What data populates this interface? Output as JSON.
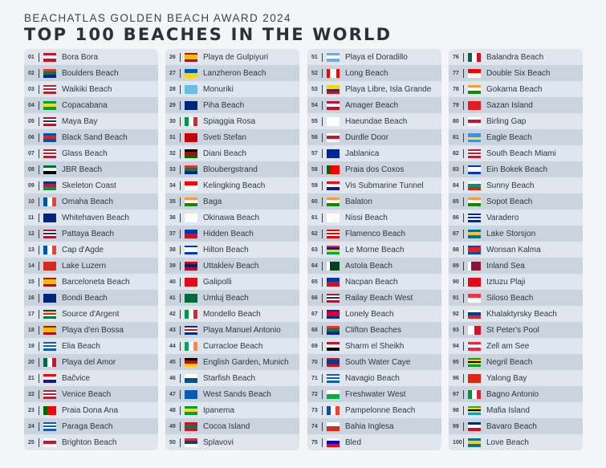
{
  "header": {
    "subtitle": "BEACHATLAS GOLDEN BEACH AWARD 2024",
    "title": "TOP 100 BEACHES IN THE WORLD"
  },
  "flags": {
    "pf": {
      "d": "h",
      "c": [
        "#ce1126",
        "#fff",
        "#ce1126"
      ]
    },
    "za": {
      "d": "h",
      "c": [
        "#de3831",
        "#007a4d",
        "#002395"
      ]
    },
    "us": {
      "d": "h",
      "c": [
        "#b22234",
        "#fff",
        "#b22234",
        "#fff",
        "#b22234"
      ]
    },
    "br": {
      "d": "h",
      "c": [
        "#009c3b",
        "#ffdf00",
        "#009c3b"
      ]
    },
    "mx": {
      "d": "v",
      "c": [
        "#006847",
        "#fff",
        "#ce1126"
      ]
    },
    "is": {
      "d": "h",
      "c": [
        "#02529c",
        "#dc1e35",
        "#02529c"
      ]
    },
    "ae": {
      "d": "h",
      "c": [
        "#00732f",
        "#fff",
        "#000"
      ]
    },
    "na": {
      "d": "h",
      "c": [
        "#003580",
        "#d21034",
        "#009543"
      ]
    },
    "fr": {
      "d": "v",
      "c": [
        "#0055a4",
        "#fff",
        "#ef4135"
      ]
    },
    "au": {
      "d": "h",
      "c": [
        "#00247d",
        "#00247d"
      ]
    },
    "th": {
      "d": "h",
      "c": [
        "#a51931",
        "#fff",
        "#2d2a4a",
        "#fff",
        "#a51931"
      ]
    },
    "ch": {
      "d": "h",
      "c": [
        "#d52b1e"
      ]
    },
    "es": {
      "d": "h",
      "c": [
        "#aa151b",
        "#f1bf00",
        "#f1bf00",
        "#aa151b"
      ]
    },
    "sc": {
      "d": "h",
      "c": [
        "#003f87",
        "#fcd856",
        "#d62828",
        "#fff",
        "#007a3d"
      ]
    },
    "gr": {
      "d": "h",
      "c": [
        "#0d5eaf",
        "#fff",
        "#0d5eaf",
        "#fff",
        "#0d5eaf"
      ]
    },
    "hr": {
      "d": "h",
      "c": [
        "#ff0000",
        "#fff",
        "#171796"
      ]
    },
    "pt": {
      "d": "v",
      "c": [
        "#006600",
        "#ff0000",
        "#ff0000"
      ]
    },
    "en": {
      "d": "h",
      "c": [
        "#fff",
        "#ce1124",
        "#fff"
      ]
    },
    "ua": {
      "d": "h",
      "c": [
        "#0057b7",
        "#ffd700"
      ]
    },
    "fj": {
      "d": "h",
      "c": [
        "#68bfe5"
      ]
    },
    "nz": {
      "d": "h",
      "c": [
        "#00247d"
      ]
    },
    "it": {
      "d": "v",
      "c": [
        "#009246",
        "#fff",
        "#ce2b37"
      ]
    },
    "me": {
      "d": "h",
      "c": [
        "#c40308"
      ]
    },
    "ke": {
      "d": "h",
      "c": [
        "#000",
        "#bb0000",
        "#006600"
      ]
    },
    "in": {
      "d": "h",
      "c": [
        "#ff9933",
        "#fff",
        "#138808"
      ]
    },
    "jp": {
      "d": "h",
      "c": [
        "#fff"
      ]
    },
    "ph": {
      "d": "h",
      "c": [
        "#0038a8",
        "#ce1126"
      ]
    },
    "il": {
      "d": "h",
      "c": [
        "#0038b8",
        "#fff",
        "#fff",
        "#0038b8"
      ]
    },
    "no": {
      "d": "h",
      "c": [
        "#ba0c2f",
        "#00205b",
        "#ba0c2f"
      ]
    },
    "tr": {
      "d": "h",
      "c": [
        "#e30a17"
      ]
    },
    "sa": {
      "d": "h",
      "c": [
        "#006c35"
      ]
    },
    "cr": {
      "d": "h",
      "c": [
        "#002b7f",
        "#fff",
        "#ce1126",
        "#fff",
        "#002b7f"
      ]
    },
    "ie": {
      "d": "v",
      "c": [
        "#169b62",
        "#fff",
        "#ff883e"
      ]
    },
    "de": {
      "d": "h",
      "c": [
        "#000",
        "#dd0000",
        "#ffce00"
      ]
    },
    "pa": {
      "d": "h",
      "c": [
        "#fff",
        "#005293"
      ]
    },
    "scot": {
      "d": "h",
      "c": [
        "#005eb8"
      ]
    },
    "mv": {
      "d": "h",
      "c": [
        "#d21034",
        "#007e3a",
        "#d21034"
      ]
    },
    "rs": {
      "d": "h",
      "c": [
        "#c6363c",
        "#0c4076",
        "#fff"
      ]
    },
    "ar": {
      "d": "h",
      "c": [
        "#74acdf",
        "#fff",
        "#74acdf"
      ]
    },
    "ca": {
      "d": "v",
      "c": [
        "#ff0000",
        "#fff",
        "#fff",
        "#ff0000"
      ]
    },
    "co": {
      "d": "h",
      "c": [
        "#fcd116",
        "#fcd116",
        "#003893",
        "#ce1126"
      ]
    },
    "dk": {
      "d": "h",
      "c": [
        "#c8102e",
        "#fff",
        "#c8102e"
      ]
    },
    "kr": {
      "d": "h",
      "c": [
        "#fff"
      ]
    },
    "ba": {
      "d": "h",
      "c": [
        "#002395"
      ]
    },
    "cy": {
      "d": "h",
      "c": [
        "#fff"
      ]
    },
    "pr": {
      "d": "h",
      "c": [
        "#ed0000",
        "#fff",
        "#ed0000",
        "#fff",
        "#ed0000"
      ]
    },
    "mu": {
      "d": "h",
      "c": [
        "#ea2839",
        "#1a206d",
        "#ffd500",
        "#00a551"
      ]
    },
    "pk": {
      "d": "v",
      "c": [
        "#fff",
        "#01411c",
        "#01411c",
        "#01411c"
      ]
    },
    "kh": {
      "d": "h",
      "c": [
        "#032ea1",
        "#e00025",
        "#e00025",
        "#032ea1"
      ]
    },
    "eg": {
      "d": "h",
      "c": [
        "#ce1126",
        "#fff",
        "#000"
      ]
    },
    "bz": {
      "d": "h",
      "c": [
        "#ce1126",
        "#003f87",
        "#003f87",
        "#003f87",
        "#ce1126"
      ]
    },
    "wales": {
      "d": "h",
      "c": [
        "#fff",
        "#00b140"
      ]
    },
    "cl": {
      "d": "h",
      "c": [
        "#fff",
        "#d52b1e"
      ]
    },
    "si": {
      "d": "h",
      "c": [
        "#fff",
        "#0000ff",
        "#ff0000"
      ]
    },
    "id": {
      "d": "h",
      "c": [
        "#ff0000",
        "#fff"
      ]
    },
    "al": {
      "d": "h",
      "c": [
        "#e41e20"
      ]
    },
    "aw": {
      "d": "h",
      "c": [
        "#418fde",
        "#418fde",
        "#f9e814",
        "#418fde"
      ]
    },
    "bg": {
      "d": "h",
      "c": [
        "#fff",
        "#00966e",
        "#d62612"
      ]
    },
    "cu": {
      "d": "h",
      "c": [
        "#002a8f",
        "#fff",
        "#002a8f",
        "#fff",
        "#002a8f"
      ]
    },
    "se": {
      "d": "h",
      "c": [
        "#006aa7",
        "#fecc00",
        "#006aa7"
      ]
    },
    "kp": {
      "d": "h",
      "c": [
        "#024fa2",
        "#ed1c27",
        "#ed1c27",
        "#024fa2"
      ]
    },
    "qa": {
      "d": "v",
      "c": [
        "#fff",
        "#8a1538",
        "#8a1538",
        "#8a1538"
      ]
    },
    "sg": {
      "d": "h",
      "c": [
        "#ef3340",
        "#fff"
      ]
    },
    "ru": {
      "d": "h",
      "c": [
        "#fff",
        "#0039a6",
        "#d52b1e"
      ]
    },
    "mt": {
      "d": "v",
      "c": [
        "#fff",
        "#cf142b"
      ]
    },
    "at": {
      "d": "h",
      "c": [
        "#ed2939",
        "#fff",
        "#ed2939"
      ]
    },
    "jm": {
      "d": "h",
      "c": [
        "#009b3a",
        "#fed100",
        "#000",
        "#fed100",
        "#009b3a"
      ]
    },
    "cn": {
      "d": "h",
      "c": [
        "#de2910"
      ]
    },
    "tz": {
      "d": "h",
      "c": [
        "#1eb53a",
        "#fcd116",
        "#000",
        "#fcd116",
        "#00a3dd"
      ]
    },
    "do": {
      "d": "h",
      "c": [
        "#002d62",
        "#fff",
        "#ce1126"
      ]
    },
    "bs": {
      "d": "h",
      "c": [
        "#00778b",
        "#ffc72c",
        "#00778b"
      ]
    }
  },
  "beaches": [
    {
      "n": "01",
      "name": "Bora Bora",
      "f": "pf"
    },
    {
      "n": "02",
      "name": "Boulders Beach",
      "f": "za"
    },
    {
      "n": "03",
      "name": "Waikiki Beach",
      "f": "us"
    },
    {
      "n": "04",
      "name": "Copacabana",
      "f": "br"
    },
    {
      "n": "05",
      "name": "Maya Bay",
      "f": "th"
    },
    {
      "n": "06",
      "name": "Black Sand Beach",
      "f": "is"
    },
    {
      "n": "07",
      "name": "Glass Beach",
      "f": "us"
    },
    {
      "n": "08",
      "name": "JBR Beach",
      "f": "ae"
    },
    {
      "n": "09",
      "name": "Skeleton Coast",
      "f": "na"
    },
    {
      "n": "10",
      "name": "Omaha Beach",
      "f": "fr"
    },
    {
      "n": "11",
      "name": "Whitehaven Beach",
      "f": "au"
    },
    {
      "n": "12",
      "name": "Pattaya Beach",
      "f": "th"
    },
    {
      "n": "13",
      "name": "Cap d'Agde",
      "f": "fr"
    },
    {
      "n": "14",
      "name": "Lake Luzern",
      "f": "ch"
    },
    {
      "n": "15",
      "name": "Barceloneta Beach",
      "f": "es"
    },
    {
      "n": "16",
      "name": "Bondi Beach",
      "f": "au"
    },
    {
      "n": "17",
      "name": "Source d'Argent",
      "f": "sc"
    },
    {
      "n": "18",
      "name": "Playa d'en Bossa",
      "f": "es"
    },
    {
      "n": "19",
      "name": "Elia Beach",
      "f": "gr"
    },
    {
      "n": "20",
      "name": "Playa del Amor",
      "f": "mx"
    },
    {
      "n": "21",
      "name": "Bačvice",
      "f": "hr"
    },
    {
      "n": "22",
      "name": "Venice Beach",
      "f": "us"
    },
    {
      "n": "23",
      "name": "Praia Dona Ana",
      "f": "pt"
    },
    {
      "n": "24",
      "name": "Paraga Beach",
      "f": "gr"
    },
    {
      "n": "25",
      "name": "Brighton Beach",
      "f": "en"
    },
    {
      "n": "26",
      "name": "Playa de Gulpiyuri",
      "f": "es"
    },
    {
      "n": "27",
      "name": "Lanzheron Beach",
      "f": "ua"
    },
    {
      "n": "28",
      "name": "Monuriki",
      "f": "fj"
    },
    {
      "n": "29",
      "name": "Piha Beach",
      "f": "nz"
    },
    {
      "n": "30",
      "name": "Spiaggia Rosa",
      "f": "it"
    },
    {
      "n": "31",
      "name": "Sveti Stefan",
      "f": "me"
    },
    {
      "n": "32",
      "name": "Diani Beach",
      "f": "ke"
    },
    {
      "n": "33",
      "name": "Bloubergstrand",
      "f": "za"
    },
    {
      "n": "34",
      "name": "Kelingking Beach",
      "f": "id"
    },
    {
      "n": "35",
      "name": "Baga",
      "f": "in"
    },
    {
      "n": "36",
      "name": "Okinawa Beach",
      "f": "jp"
    },
    {
      "n": "37",
      "name": "Hidden Beach",
      "f": "ph"
    },
    {
      "n": "38",
      "name": "Hilton Beach",
      "f": "il"
    },
    {
      "n": "39",
      "name": "Uttakleiv Beach",
      "f": "no"
    },
    {
      "n": "40",
      "name": "Galipolli",
      "f": "tr"
    },
    {
      "n": "41",
      "name": "Umluj Beach",
      "f": "sa"
    },
    {
      "n": "42",
      "name": "Mondello Beach",
      "f": "it"
    },
    {
      "n": "43",
      "name": "Playa Manuel Antonio",
      "f": "cr"
    },
    {
      "n": "44",
      "name": "Curracloe Beach",
      "f": "ie"
    },
    {
      "n": "45",
      "name": "English Garden, Munich",
      "f": "de"
    },
    {
      "n": "46",
      "name": "Starfish Beach",
      "f": "pa"
    },
    {
      "n": "47",
      "name": "West Sands Beach",
      "f": "scot"
    },
    {
      "n": "48",
      "name": "Ipanema",
      "f": "br"
    },
    {
      "n": "49",
      "name": "Cocoa Island",
      "f": "mv"
    },
    {
      "n": "50",
      "name": "Splavovi",
      "f": "rs"
    },
    {
      "n": "51",
      "name": "Playa el Doradillo",
      "f": "ar"
    },
    {
      "n": "52",
      "name": "Long Beach",
      "f": "ca"
    },
    {
      "n": "53",
      "name": "Playa Libre, Isla Grande",
      "f": "co"
    },
    {
      "n": "54",
      "name": "Amager Beach",
      "f": "dk"
    },
    {
      "n": "55",
      "name": "Haeundae Beach",
      "f": "kr"
    },
    {
      "n": "56",
      "name": "Durdle Door",
      "f": "en"
    },
    {
      "n": "57",
      "name": "Jablanica",
      "f": "ba"
    },
    {
      "n": "58",
      "name": "Praia dos Coxos",
      "f": "pt"
    },
    {
      "n": "59",
      "name": "Vis Submarine Tunnel",
      "f": "hr"
    },
    {
      "n": "60",
      "name": "Balaton",
      "f": "in"
    },
    {
      "n": "61",
      "name": "Nissi Beach",
      "f": "cy"
    },
    {
      "n": "62",
      "name": "Flamenco Beach",
      "f": "pr"
    },
    {
      "n": "63",
      "name": "Le Morne Beach",
      "f": "mu"
    },
    {
      "n": "64",
      "name": "Astola Beach",
      "f": "pk"
    },
    {
      "n": "65",
      "name": "Nacpan Beach",
      "f": "ph"
    },
    {
      "n": "66",
      "name": "Railay Beach West",
      "f": "th"
    },
    {
      "n": "67",
      "name": "Lonely Beach",
      "f": "kh"
    },
    {
      "n": "68",
      "name": "Clifton Beaches",
      "f": "za"
    },
    {
      "n": "69",
      "name": "Sharm el Sheikh",
      "f": "eg"
    },
    {
      "n": "70",
      "name": "South Water Caye",
      "f": "bz"
    },
    {
      "n": "71",
      "name": "Navagio Beach",
      "f": "gr"
    },
    {
      "n": "72",
      "name": "Freshwater West",
      "f": "wales"
    },
    {
      "n": "73",
      "name": "Pampelonne Beach",
      "f": "fr"
    },
    {
      "n": "74",
      "name": "Bahia Inglesa",
      "f": "cl"
    },
    {
      "n": "75",
      "name": "Bled",
      "f": "si"
    },
    {
      "n": "76",
      "name": "Balandra Beach",
      "f": "mx"
    },
    {
      "n": "77",
      "name": "Double Six Beach",
      "f": "id"
    },
    {
      "n": "78",
      "name": "Gokarna Beach",
      "f": "in"
    },
    {
      "n": "79",
      "name": "Sazan Island",
      "f": "al"
    },
    {
      "n": "80",
      "name": "Birling Gap",
      "f": "en"
    },
    {
      "n": "81",
      "name": "Eagle Beach",
      "f": "aw"
    },
    {
      "n": "82",
      "name": "South Beach Miami",
      "f": "us"
    },
    {
      "n": "83",
      "name": "Ein Bokek Beach",
      "f": "il"
    },
    {
      "n": "84",
      "name": "Sunny Beach",
      "f": "bg"
    },
    {
      "n": "85",
      "name": "Sopot Beach",
      "f": "in"
    },
    {
      "n": "86",
      "name": "Varadero",
      "f": "cu"
    },
    {
      "n": "87",
      "name": "Lake Storsjon",
      "f": "se"
    },
    {
      "n": "88",
      "name": "Wonsan Kalma",
      "f": "kp"
    },
    {
      "n": "89",
      "name": "Inland Sea",
      "f": "qa"
    },
    {
      "n": "90",
      "name": "Iztuzu Plaji",
      "f": "tr"
    },
    {
      "n": "91",
      "name": "Siloso Beach",
      "f": "sg"
    },
    {
      "n": "92",
      "name": "Khalaktyrsky Beach",
      "f": "ru"
    },
    {
      "n": "93",
      "name": "St Peter's Pool",
      "f": "mt"
    },
    {
      "n": "94",
      "name": "Zell am See",
      "f": "at"
    },
    {
      "n": "95",
      "name": "Negril Beach",
      "f": "jm"
    },
    {
      "n": "96",
      "name": "Yalong Bay",
      "f": "cn"
    },
    {
      "n": "97",
      "name": "Bagno Antonio",
      "f": "it"
    },
    {
      "n": "98",
      "name": "Mafia Island",
      "f": "tz"
    },
    {
      "n": "99",
      "name": "Bavaro Beach",
      "f": "do"
    },
    {
      "n": "100",
      "name": "Love Beach",
      "f": "bs"
    }
  ]
}
